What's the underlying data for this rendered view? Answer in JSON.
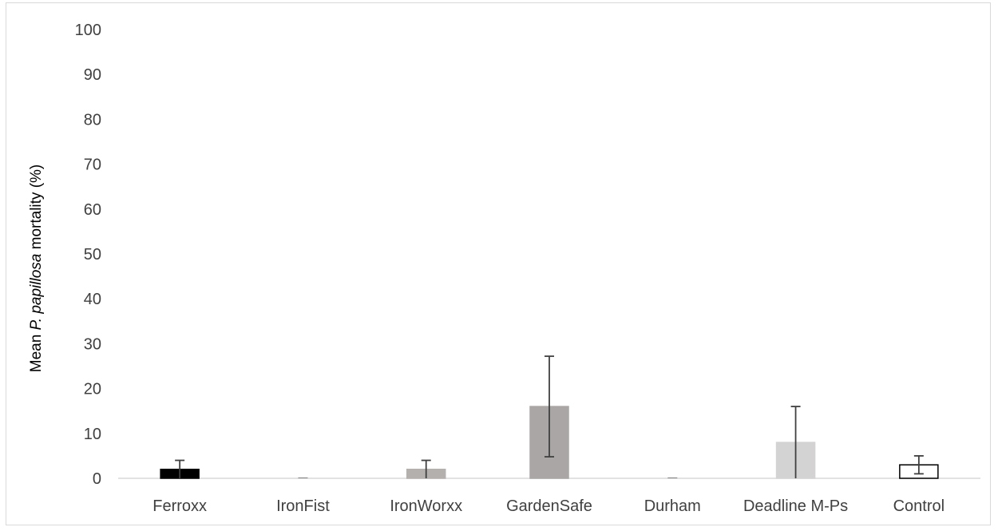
{
  "chart_data": {
    "type": "bar",
    "categories": [
      "Ferroxx",
      "IronFist",
      "IronWorxx",
      "GardenSafe",
      "Durham",
      "Deadline M-Ps",
      "Control"
    ],
    "values": [
      2,
      0,
      2,
      16,
      0,
      8,
      3
    ],
    "error_upper": [
      4,
      0,
      4,
      27.2,
      0,
      16,
      5
    ],
    "error_lower": [
      0,
      0,
      0,
      4.8,
      0,
      0,
      1
    ],
    "ylim": [
      0,
      100
    ],
    "yticks": [
      0,
      10,
      20,
      30,
      40,
      50,
      60,
      70,
      80,
      90,
      100
    ],
    "ylabel_parts": [
      "Mean ",
      "P. papillosa",
      " mortality (%)"
    ],
    "xlabel": "",
    "title": "",
    "grid": false,
    "colors": {
      "bar_fills": [
        "#000000",
        "#ffffff",
        "#b3b0ae",
        "#aaa6a5",
        "#ffffff",
        "#d4d3d3",
        "#ffffff"
      ],
      "bar_strokes": [
        "#000000",
        "#000000",
        "#b3b0ae",
        "#aaa6a5",
        "#000000",
        "#d4d3d3",
        "#000000"
      ],
      "axis": "#d9d9d9",
      "error_bar": "#404040",
      "tick_text": "#404040"
    }
  }
}
